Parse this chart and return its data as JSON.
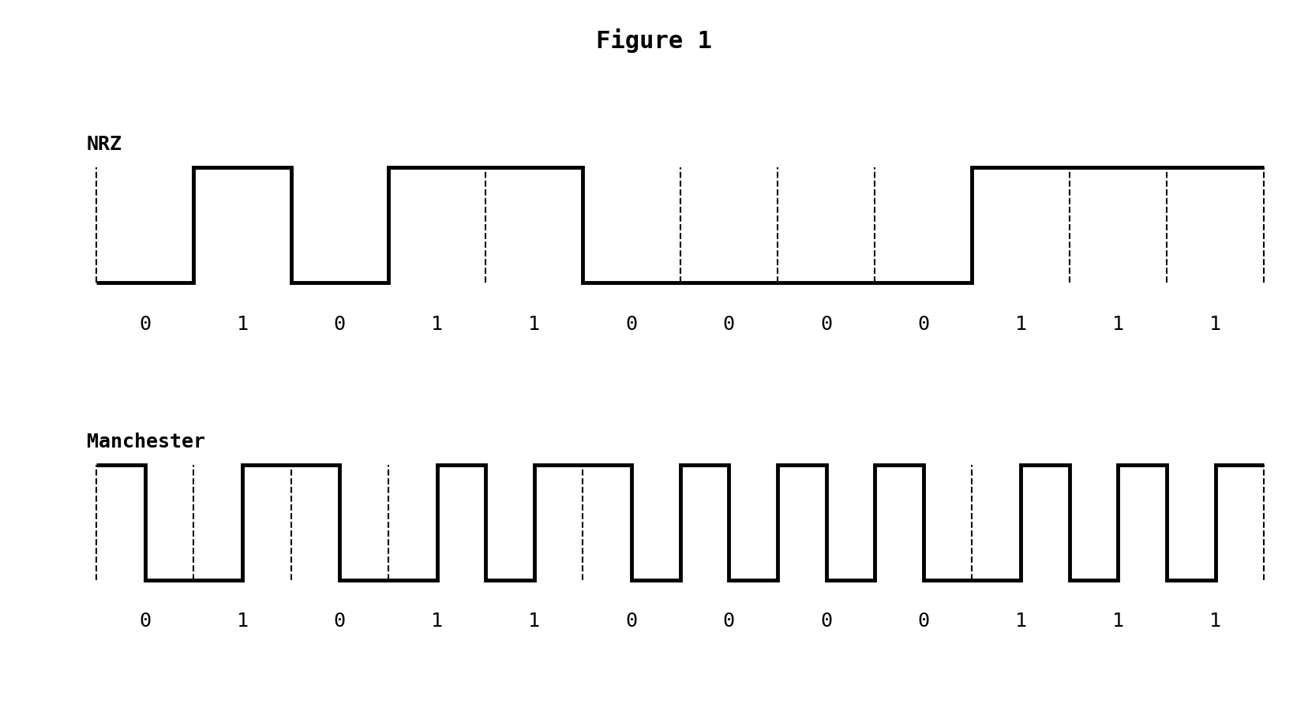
{
  "title": "Figure 1",
  "title_fontsize": 22,
  "title_fontweight": "bold",
  "title_fontfamily": "monospace",
  "bits": [
    0,
    1,
    0,
    1,
    1,
    0,
    0,
    0,
    0,
    1,
    1,
    1
  ],
  "label_nrz": "NRZ",
  "label_manchester": "Manchester",
  "label_fontsize": 18,
  "label_fontfamily": "monospace",
  "label_fontweight": "bold",
  "bit_label_fontsize": 18,
  "bit_label_fontfamily": "monospace",
  "line_color": "#000000",
  "line_width": 3.5,
  "dash_linewidth": 1.5,
  "background_color": "#ffffff",
  "low": 0.0,
  "high": 1.0
}
